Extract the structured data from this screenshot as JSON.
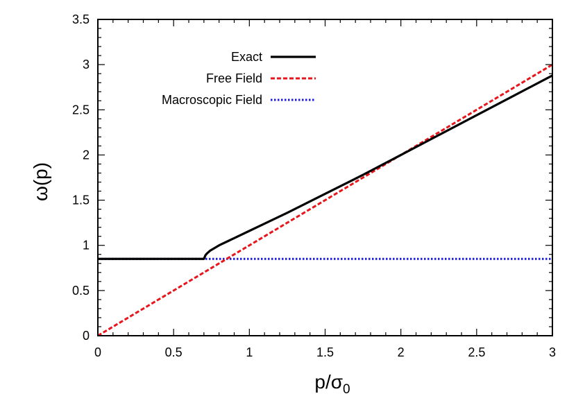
{
  "chart_data": {
    "type": "line",
    "xlabel": "p/σ",
    "xlabel_subscript": "0",
    "ylabel": "ω(p)",
    "xlim": [
      0,
      3
    ],
    "ylim": [
      0,
      3.5
    ],
    "xticks": [
      0,
      0.5,
      1,
      1.5,
      2,
      2.5,
      3
    ],
    "xtick_labels": [
      "0",
      "0.5",
      "1",
      "1.5",
      "2",
      "2.5",
      "3"
    ],
    "yticks": [
      0,
      0.5,
      1,
      1.5,
      2,
      2.5,
      3,
      3.5
    ],
    "ytick_labels": [
      "0",
      "0.5",
      "1",
      "1.5",
      "2",
      "2.5",
      "3",
      "3.5"
    ],
    "grid": false,
    "legend_placement": "top-left",
    "series": [
      {
        "name": "Exact",
        "color": "#000000",
        "style": "solid",
        "x": [
          0,
          0.7,
          0.71,
          0.72,
          0.74,
          0.77,
          0.8,
          0.85,
          0.9,
          1.0,
          1.1,
          1.25,
          1.5,
          1.75,
          2.0,
          2.25,
          2.5,
          2.75,
          3.0
        ],
        "y": [
          0.85,
          0.85,
          0.89,
          0.91,
          0.94,
          0.97,
          1.0,
          1.04,
          1.08,
          1.16,
          1.24,
          1.36,
          1.57,
          1.78,
          2.0,
          2.22,
          2.44,
          2.66,
          2.88
        ]
      },
      {
        "name": "Free Field",
        "color": "#e8151b",
        "style": "dashed",
        "x": [
          0,
          3
        ],
        "y": [
          0,
          3
        ]
      },
      {
        "name": "Macroscopic Field",
        "color": "#1a1adb",
        "style": "dotted",
        "x": [
          0,
          3
        ],
        "y": [
          0.85,
          0.85
        ]
      }
    ]
  }
}
